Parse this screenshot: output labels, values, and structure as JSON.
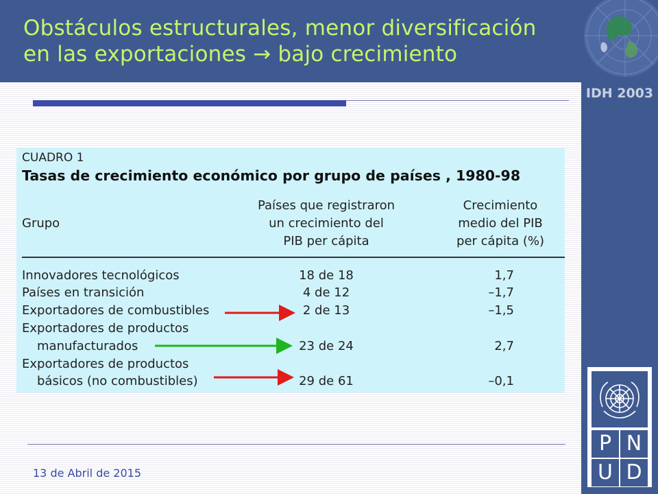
{
  "slide": {
    "title_line1": "Obstáculos estructurales, menor diversificación",
    "title_line2": "en las exportaciones → bajo crecimiento",
    "badge": "IDH 2003",
    "date": "13 de Abril de 2015",
    "colors": {
      "header": "#3f5a91",
      "title": "#c6f56a",
      "table_bg": "#cff3fb",
      "arrow_red": "#e21b1b",
      "arrow_green": "#1fb51f"
    }
  },
  "table": {
    "caption": "CUADRO 1",
    "title": "Tasas de crecimiento económico por grupo de países , 1980-98",
    "headers": {
      "grupo": "Grupo",
      "paises": [
        "Países que registraron",
        "un crecimiento del",
        "PIB per cápita"
      ],
      "crecimiento": [
        "Crecimiento",
        "medio del PIB",
        "per cápita (%)"
      ]
    },
    "rows": [
      {
        "grupo": "Innovadores tecnológicos",
        "paises": "18 de 18",
        "crecimiento": "1,7"
      },
      {
        "grupo": "Países en transición",
        "paises": "4 de 12",
        "crecimiento": "–1,7"
      },
      {
        "grupo": "Exportadores de combustibles",
        "paises": "2 de 13",
        "crecimiento": "–1,5"
      },
      {
        "grupo": "Exportadores de productos",
        "paises": "",
        "crecimiento": ""
      },
      {
        "grupo": "manufacturados",
        "paises": "23 de 24",
        "crecimiento": "2,7"
      },
      {
        "grupo": "Exportadores de productos",
        "paises": "",
        "crecimiento": ""
      },
      {
        "grupo": "básicos (no combustibles)",
        "paises": "29 de 61",
        "crecimiento": "–0,1"
      }
    ]
  },
  "logo": {
    "letters": [
      "P",
      "N",
      "U",
      "D"
    ],
    "emblem": "un-emblem-icon"
  }
}
